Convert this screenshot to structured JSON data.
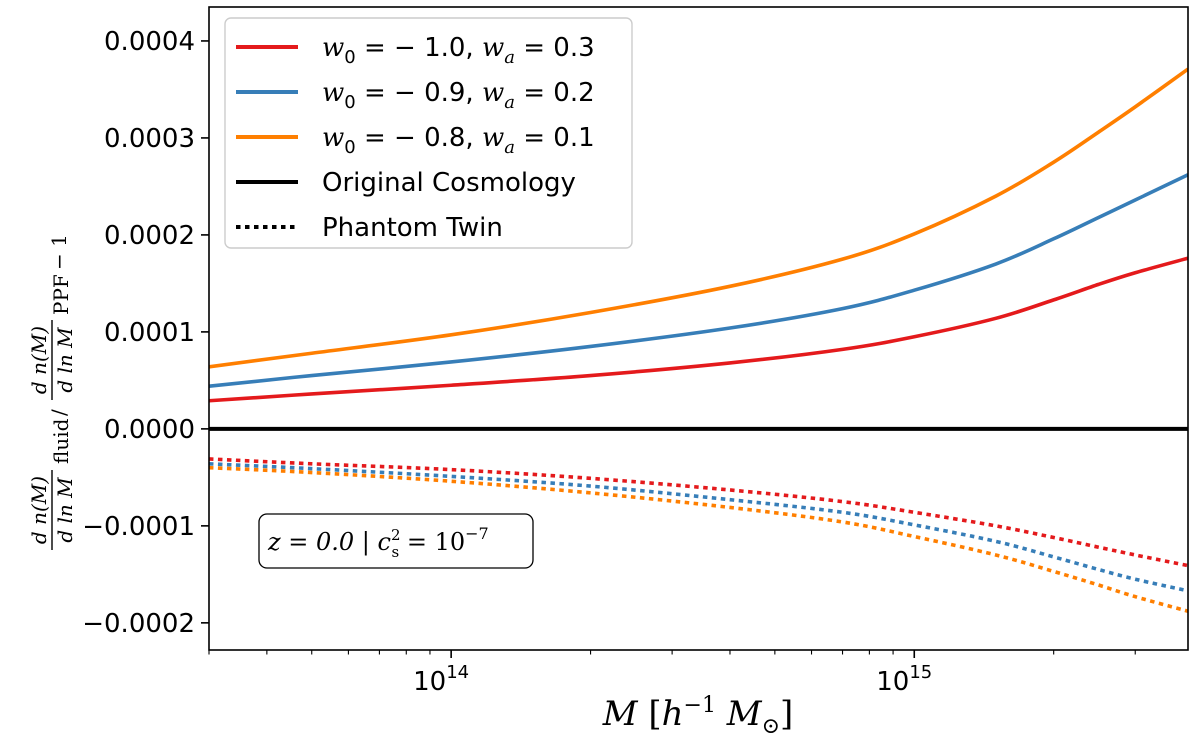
{
  "chart_data": {
    "type": "line",
    "title": "",
    "xlabel": "M [h^-1 M_sun]",
    "ylabel": "dn(M)/dlnM fluid / dn(M)/dlnM PPF - 1",
    "xscale": "log",
    "xlim": [
      30000000000000.0,
      3900000000000000.0
    ],
    "ylim": [
      -0.000228,
      0.000435
    ],
    "grid": false,
    "legend_position": "top-left",
    "x": [
      30000000000000.0,
      50000000000000.0,
      100000000000000.0,
      200000000000000.0,
      400000000000000.0,
      700000000000000.0,
      1000000000000000.0,
      1500000000000000.0,
      2000000000000000.0,
      2500000000000000.0,
      3000000000000000.0,
      3900000000000000.0
    ],
    "xtick_labels": [
      {
        "base": "10",
        "exp": "14"
      },
      {
        "base": "10",
        "exp": "15"
      }
    ],
    "yticks": [
      "0.0004",
      "0.0003",
      "0.0002",
      "0.0001",
      "0.0000",
      "−0.0001",
      "−0.0002"
    ],
    "ytick_values": [
      0.0004,
      0.0003,
      0.0002,
      0.0001,
      0.0,
      -0.0001,
      -0.0002
    ],
    "series": [
      {
        "name": "w0 = -1.0, wa = 0.3 (fluid)",
        "color": "#e41a1c",
        "dashed": false,
        "values": [
          2.9e-05,
          3.6e-05,
          4.5e-05,
          5.5e-05,
          6.8e-05,
          8.2e-05,
          9.5e-05,
          0.000114,
          0.000133,
          0.000149,
          0.000161,
          0.000176
        ]
      },
      {
        "name": "w0 = -0.9, wa = 0.2 (fluid)",
        "color": "#377eb8",
        "dashed": false,
        "values": [
          4.4e-05,
          5.5e-05,
          6.9e-05,
          8.5e-05,
          0.000104,
          0.000124,
          0.000143,
          0.00017,
          0.000196,
          0.000218,
          0.000236,
          0.000262
        ]
      },
      {
        "name": "w0 = -0.8, wa = 0.1 (fluid)",
        "color": "#ff7f00",
        "dashed": false,
        "values": [
          6.4e-05,
          7.8e-05,
          9.7e-05,
          0.00012,
          0.000147,
          0.000175,
          0.000201,
          0.00024,
          0.000275,
          0.000306,
          0.000332,
          0.000371
        ]
      },
      {
        "name": "Original Cosmology",
        "color": "#000000",
        "dashed": false,
        "values": [
          0,
          0,
          0,
          0,
          0,
          0,
          0,
          0,
          0,
          0,
          0,
          0
        ]
      },
      {
        "name": "w0 = -1.0, wa = 0.3 (phantom twin)",
        "color": "#e41a1c",
        "dashed": true,
        "values": [
          -3.1e-05,
          -3.6e-05,
          -4.2e-05,
          -5.1e-05,
          -6.3e-05,
          -7.5e-05,
          -8.6e-05,
          -0.0001,
          -0.000112,
          -0.000122,
          -0.00013,
          -0.000141
        ]
      },
      {
        "name": "w0 = -0.9, wa = 0.2 (phantom twin)",
        "color": "#377eb8",
        "dashed": true,
        "values": [
          -3.6e-05,
          -4.1e-05,
          -4.9e-05,
          -5.9e-05,
          -7.3e-05,
          -8.6e-05,
          -9.9e-05,
          -0.000116,
          -0.000132,
          -0.000145,
          -0.000155,
          -0.000167
        ]
      },
      {
        "name": "w0 = -0.8, wa = 0.1 (phantom twin)",
        "color": "#ff7f00",
        "dashed": true,
        "values": [
          -4e-05,
          -4.5e-05,
          -5.4e-05,
          -6.6e-05,
          -8.1e-05,
          -9.6e-05,
          -0.000111,
          -0.00013,
          -0.000147,
          -0.000161,
          -0.000173,
          -0.000188
        ]
      }
    ],
    "legend": [
      {
        "key": "red",
        "color": "#e41a1c",
        "dashed": false,
        "w0_label": "w",
        "w0_sub": "0",
        "w0_val": " = − 1.0, ",
        "wa_label": "w",
        "wa_sub": "a",
        "wa_val": " = 0.3"
      },
      {
        "key": "blue",
        "color": "#377eb8",
        "dashed": false,
        "w0_label": "w",
        "w0_sub": "0",
        "w0_val": " = − 0.9, ",
        "wa_label": "w",
        "wa_sub": "a",
        "wa_val": " = 0.2"
      },
      {
        "key": "orange",
        "color": "#ff7f00",
        "dashed": false,
        "w0_label": "w",
        "w0_sub": "0",
        "w0_val": " = − 0.8, ",
        "wa_label": "w",
        "wa_sub": "a",
        "wa_val": " = 0.1"
      },
      {
        "key": "original",
        "color": "#000000",
        "dashed": false,
        "text": "Original Cosmology"
      },
      {
        "key": "phantom",
        "color": "#000000",
        "dashed": true,
        "text": "Phantom Twin"
      }
    ],
    "annotation": {
      "z": "z = 0.0 | ",
      "c": "c",
      "c_sub": "s",
      "c_sup": "2",
      "rest": " = 10",
      "rest_sup": "−7"
    },
    "xlabel_parts": {
      "M": "M",
      "open": " [",
      "h": "h",
      "h_sup": "−1",
      "M2": " M",
      "sun": "⊙",
      "close": "]"
    },
    "ylabel_parts": {
      "num": "d n(M)",
      "den": "d ln M",
      "sub1": "fluid",
      "sub2": "PPF",
      "minus": "− 1"
    }
  }
}
